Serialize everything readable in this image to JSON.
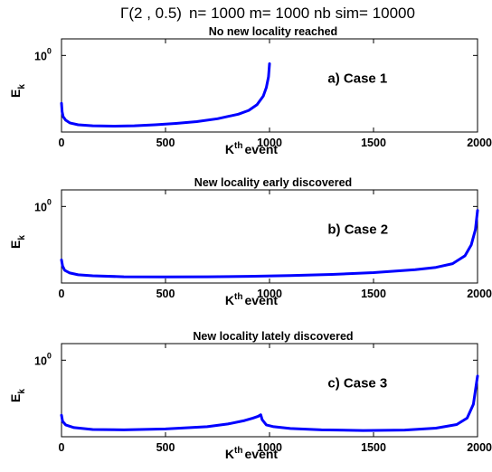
{
  "figure": {
    "suptitle_prefix": "Γ(2 , 0.5)",
    "suptitle_rest": "n= 1000 m= 1000 nb sim= 10000"
  },
  "chart_data": [
    {
      "type": "line",
      "title": "No new locality reached",
      "annotation": "a) Case 1",
      "ylabel": {
        "main": "E",
        "sub": "k"
      },
      "xlabel": {
        "main": "K",
        "sup": "th",
        "rest": "event"
      },
      "xlim": [
        0,
        2000
      ],
      "xticks": [
        "0",
        "500",
        "1000",
        "1500",
        "2000"
      ],
      "ytick": {
        "base": "10",
        "exp": "0"
      },
      "log_y": true,
      "grid": false,
      "series": [
        {
          "color": "#0000ff",
          "x": [
            0,
            3,
            8,
            20,
            40,
            80,
            150,
            250,
            350,
            450,
            550,
            650,
            750,
            850,
            900,
            940,
            970,
            985,
            995,
            1000
          ],
          "y": [
            0.42,
            0.36,
            0.33,
            0.31,
            0.295,
            0.285,
            0.28,
            0.278,
            0.28,
            0.285,
            0.292,
            0.302,
            0.318,
            0.345,
            0.37,
            0.41,
            0.48,
            0.56,
            0.68,
            0.86
          ]
        }
      ]
    },
    {
      "type": "line",
      "title": "New locality early discovered",
      "annotation": "b) Case 2",
      "ylabel": {
        "main": "E",
        "sub": "k"
      },
      "xlabel": {
        "main": "K",
        "sup": "th",
        "rest": "event"
      },
      "xlim": [
        0,
        2000
      ],
      "xticks": [
        "0",
        "500",
        "1000",
        "1500",
        "2000"
      ],
      "ytick": {
        "base": "10",
        "exp": "0"
      },
      "log_y": true,
      "grid": false,
      "series": [
        {
          "color": "#0000ff",
          "x": [
            0,
            5,
            15,
            40,
            80,
            150,
            300,
            500,
            700,
            900,
            1100,
            1300,
            1500,
            1700,
            1800,
            1880,
            1940,
            1970,
            1990,
            2000
          ],
          "y": [
            0.38,
            0.34,
            0.315,
            0.3,
            0.29,
            0.285,
            0.28,
            0.279,
            0.28,
            0.282,
            0.286,
            0.292,
            0.302,
            0.318,
            0.332,
            0.355,
            0.41,
            0.5,
            0.66,
            0.93
          ]
        }
      ]
    },
    {
      "type": "line",
      "title": "New locality lately discovered",
      "annotation": "c) Case 3",
      "ylabel": {
        "main": "E",
        "sub": "k"
      },
      "xlabel": {
        "main": "K",
        "sup": "th",
        "rest": "event"
      },
      "xlim": [
        0,
        2000
      ],
      "xticks": [
        "0",
        "500",
        "1000",
        "1500",
        "2000"
      ],
      "ytick": {
        "base": "10",
        "exp": "0"
      },
      "log_y": true,
      "grid": false,
      "series": [
        {
          "color": "#0000ff",
          "x": [
            0,
            5,
            20,
            60,
            150,
            300,
            500,
            700,
            800,
            880,
            920,
            945,
            958,
            965,
            985,
            1020,
            1100,
            1250,
            1450,
            1650,
            1800,
            1900,
            1950,
            1980,
            2000
          ],
          "y": [
            0.37,
            0.33,
            0.31,
            0.295,
            0.285,
            0.283,
            0.288,
            0.3,
            0.315,
            0.335,
            0.35,
            0.362,
            0.372,
            0.34,
            0.31,
            0.3,
            0.29,
            0.283,
            0.28,
            0.282,
            0.292,
            0.312,
            0.35,
            0.45,
            0.75
          ]
        }
      ]
    }
  ]
}
